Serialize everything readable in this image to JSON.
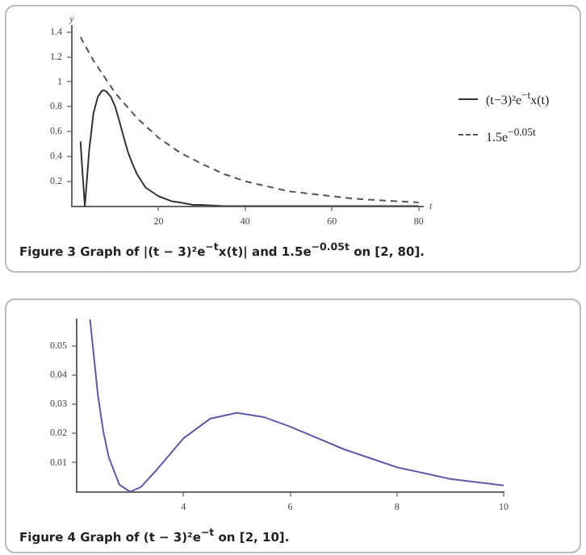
{
  "chart_data": [
    {
      "type": "line",
      "title": "Figure 3  Graph of |(t − 3)²e$^{−t}$x(t)| and 1.5e$^{−0.05t}$ on [2, 80].",
      "xlabel": "t",
      "ylabel": "y",
      "legend": "right",
      "grid": false,
      "xlim": [
        0,
        81
      ],
      "ylim": [
        0,
        1.45
      ],
      "xticks": [
        20,
        40,
        60,
        80
      ],
      "yticks": [
        0.2,
        0.4,
        0.6,
        0.8,
        1.0,
        1.2,
        1.4
      ],
      "series": [
        {
          "name": "(t−3)²e$^{−t}$x(t)",
          "color": "#333333",
          "line_style": "solid",
          "x": [
            2,
            2.5,
            3,
            4,
            5,
            6,
            7,
            7.5,
            8,
            9,
            10,
            11,
            12,
            13,
            14,
            15,
            17,
            20,
            23,
            25,
            28,
            30,
            35,
            40,
            50,
            60,
            70,
            80
          ],
          "values": [
            0.52,
            0.25,
            0,
            0.45,
            0.75,
            0.88,
            0.93,
            0.93,
            0.92,
            0.88,
            0.8,
            0.68,
            0.55,
            0.43,
            0.34,
            0.26,
            0.15,
            0.08,
            0.04,
            0.03,
            0.01,
            0.01,
            0,
            0,
            0,
            0,
            0,
            0
          ]
        },
        {
          "name": "1.5e$^{−0.05t}$",
          "color": "#555555",
          "line_style": "dashed",
          "x": [
            2,
            5,
            10,
            15,
            20,
            25,
            30,
            35,
            40,
            45,
            50,
            55,
            60,
            65,
            70,
            75,
            80
          ],
          "values": [
            1.36,
            1.17,
            0.91,
            0.71,
            0.55,
            0.43,
            0.34,
            0.26,
            0.2,
            0.16,
            0.12,
            0.1,
            0.08,
            0.06,
            0.05,
            0.04,
            0.03
          ]
        }
      ]
    },
    {
      "type": "line",
      "title": "Figure 4  Graph of (t − 3)²e$^{−t}$ on [2, 10].",
      "grid": false,
      "xlim": [
        2,
        10
      ],
      "ylim": [
        0,
        0.059
      ],
      "xticks": [
        4,
        6,
        8,
        10
      ],
      "yticks": [
        0.01,
        0.02,
        0.03,
        0.04,
        0.05
      ],
      "series": [
        {
          "color": "#5a5aa8",
          "line_style": "solid",
          "x": [
            2.25,
            2.4,
            2.5,
            2.6,
            2.8,
            3,
            3.2,
            3.5,
            4,
            4.5,
            5,
            5.5,
            6,
            7,
            8,
            9,
            10
          ],
          "values": [
            0.059,
            0.0327,
            0.0205,
            0.0119,
            0.0024,
            0,
            0.0016,
            0.0075,
            0.0183,
            0.025,
            0.027,
            0.0256,
            0.0223,
            0.0146,
            0.0084,
            0.0044,
            0.0022
          ]
        }
      ]
    }
  ]
}
